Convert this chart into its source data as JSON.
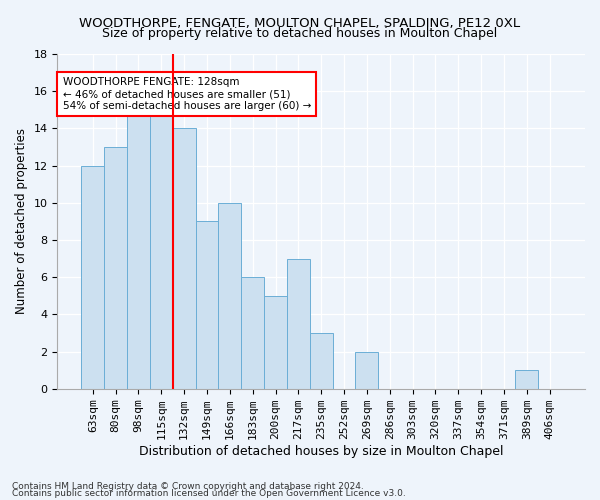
{
  "title": "WOODTHORPE, FENGATE, MOULTON CHAPEL, SPALDING, PE12 0XL",
  "subtitle": "Size of property relative to detached houses in Moulton Chapel",
  "xlabel": "Distribution of detached houses by size in Moulton Chapel",
  "ylabel": "Number of detached properties",
  "categories": [
    "63sqm",
    "80sqm",
    "98sqm",
    "115sqm",
    "132sqm",
    "149sqm",
    "166sqm",
    "183sqm",
    "200sqm",
    "217sqm",
    "235sqm",
    "252sqm",
    "269sqm",
    "286sqm",
    "303sqm",
    "320sqm",
    "337sqm",
    "354sqm",
    "371sqm",
    "389sqm",
    "406sqm"
  ],
  "values": [
    12,
    13,
    15,
    15,
    14,
    9,
    10,
    6,
    5,
    7,
    3,
    0,
    2,
    0,
    0,
    0,
    0,
    0,
    0,
    1,
    0
  ],
  "bar_color": "#cce0f0",
  "bar_edge_color": "#6baed6",
  "bar_width": 1.0,
  "vline_color": "red",
  "vline_x": 4.5,
  "ylim": [
    0,
    18
  ],
  "yticks": [
    0,
    2,
    4,
    6,
    8,
    10,
    12,
    14,
    16,
    18
  ],
  "annotation_text": "WOODTHORPE FENGATE: 128sqm\n← 46% of detached houses are smaller (51)\n54% of semi-detached houses are larger (60) →",
  "annotation_box_color": "white",
  "annotation_box_edgecolor": "red",
  "footer1": "Contains HM Land Registry data © Crown copyright and database right 2024.",
  "footer2": "Contains public sector information licensed under the Open Government Licence v3.0.",
  "bg_color": "#eef4fb",
  "plot_bg_color": "#eef4fb",
  "title_fontsize": 9.5,
  "ylabel_fontsize": 8.5,
  "xlabel_fontsize": 9,
  "tick_fontsize": 8,
  "ann_fontsize": 7.5,
  "footer_fontsize": 6.5
}
